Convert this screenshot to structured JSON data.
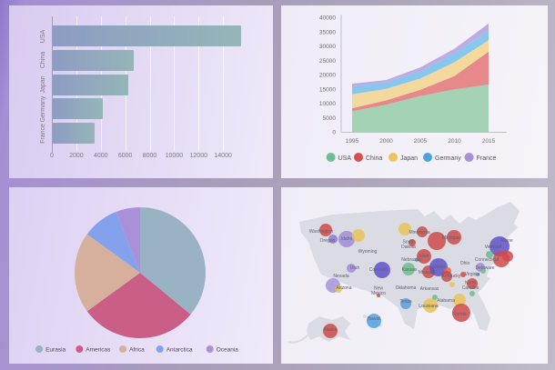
{
  "panels": {
    "top_left": "horizontal-bar-chart",
    "top_right": "stacked-area-chart",
    "bottom_left": "pie-chart",
    "bottom_right": "us-bubble-map"
  },
  "chart_data": [
    {
      "type": "bar",
      "orientation": "horizontal",
      "title": "",
      "categories": [
        "USA",
        "China",
        "Japan",
        "Germany",
        "France"
      ],
      "values": [
        15400,
        6600,
        6200,
        4100,
        3400
      ],
      "xticks": [
        0,
        2000,
        4000,
        6000,
        8000,
        10000,
        12000,
        14000
      ],
      "xlim": [
        0,
        16000
      ],
      "grid": true,
      "bar_gradient": [
        "#8d9cc3",
        "#95b6b8"
      ],
      "axis_text_color": "#7d7888"
    },
    {
      "type": "area",
      "stacked": true,
      "x": [
        1995,
        2000,
        2005,
        2010,
        2015
      ],
      "yticks": [
        0,
        5000,
        10000,
        15000,
        20000,
        25000,
        30000,
        35000,
        40000
      ],
      "ylim": [
        0,
        40000
      ],
      "grid": false,
      "legend_position": "bottom",
      "axis_text_color": "#6f6b78",
      "legend_text_color": "#55525e",
      "series": [
        {
          "name": "USA",
          "fill": "#9ccfae",
          "dot": "#6fbe93",
          "values": [
            7200,
            9500,
            12500,
            14800,
            16500
          ]
        },
        {
          "name": "China",
          "fill": "#e58081",
          "dot": "#d94f4f",
          "values": [
            1000,
            1500,
            2200,
            4700,
            11500
          ]
        },
        {
          "name": "Japan",
          "fill": "#f3d795",
          "dot": "#ecc35c",
          "values": [
            4900,
            4000,
            3900,
            4800,
            4000
          ]
        },
        {
          "name": "Germany",
          "fill": "#7fc3ec",
          "dot": "#4da3dd",
          "values": [
            2700,
            2300,
            2500,
            3200,
            3300
          ]
        },
        {
          "name": "France",
          "fill": "#b9a6de",
          "dot": "#a98fd6",
          "values": [
            1000,
            800,
            1400,
            1500,
            2500
          ]
        }
      ]
    },
    {
      "type": "pie",
      "labels": [
        "Eurasia",
        "Americas",
        "Africa",
        "Antarctica",
        "Oceania"
      ],
      "values": [
        36,
        29,
        20,
        9,
        6
      ],
      "unit": "percent-of-circle",
      "colors": [
        "#99b3c5",
        "#cb5e86",
        "#d7af9d",
        "#84a1ed",
        "#aa90d9"
      ],
      "legend_position": "bottom",
      "legend_text_color": "#4a4a55"
    },
    {
      "type": "scatter",
      "subtype": "us-bubble-map",
      "map_fill": "#dbdbe3",
      "label_color": "#60606c",
      "points": [
        {
          "state": "Washington",
          "label": "Washington",
          "lx": 44,
          "ly": 50,
          "bx": 49,
          "by": 47,
          "r": 7,
          "color": "#cf4a4a"
        },
        {
          "state": "Oregon",
          "label": "Oregon",
          "lx": 51,
          "ly": 60,
          "bx": 57,
          "by": 57,
          "r": 5,
          "color": "#8a7ad0"
        },
        {
          "state": "Idaho",
          "label": "Idaho",
          "lx": 72,
          "ly": 58,
          "bx": 72,
          "by": 57,
          "r": 9,
          "color": "#a08dd6"
        },
        {
          "state": "Montana",
          "label": "",
          "bx": 85,
          "by": 53,
          "r": 7,
          "color": "#e9c258"
        },
        {
          "state": "Wyoming",
          "label": "Wyoming",
          "lx": 95,
          "ly": 72,
          "r": 0
        },
        {
          "state": "Utah",
          "label": "Utah",
          "lx": 81,
          "ly": 90,
          "bx": 77,
          "by": 89,
          "r": 5,
          "color": "#a08dd6"
        },
        {
          "state": "Colorado",
          "label": "Colorado",
          "lx": 107,
          "ly": 92,
          "bx": 111,
          "by": 91,
          "r": 9,
          "color": "#5f51cb"
        },
        {
          "state": "Nevada",
          "label": "Nevada",
          "lx": 66,
          "ly": 99,
          "bx": 57,
          "by": 108,
          "r": 8,
          "color": "#a694d8"
        },
        {
          "state": "Arizona",
          "label": "Arizona",
          "lx": 69,
          "ly": 112,
          "bx": 63,
          "by": 112,
          "r": 4,
          "color": "#e9c258"
        },
        {
          "state": "New Mexico",
          "label": "New\nMexico",
          "lx": 107,
          "ly": 115,
          "bx": 107,
          "by": 119,
          "r": 2,
          "color": "#cf4a4a"
        },
        {
          "state": "North Dakota",
          "label": "",
          "bx": 136,
          "by": 46,
          "r": 7,
          "color": "#e9c258"
        },
        {
          "state": "Minnesota",
          "label": "Minnesota",
          "lx": 152,
          "ly": 51,
          "bx": 155,
          "by": 49,
          "r": 6,
          "color": "#cf4a4a"
        },
        {
          "state": "Wisconsin",
          "label": "",
          "bx": 171,
          "by": 59,
          "r": 10,
          "color": "#cf4a4a"
        },
        {
          "state": "Michigan",
          "label": "Michigan",
          "lx": 187,
          "ly": 57,
          "bx": 190,
          "by": 55,
          "r": 8,
          "color": "#cf4a4a"
        },
        {
          "state": "South Dakota",
          "label": "South\nDakota",
          "lx": 140,
          "ly": 64,
          "bx": 144,
          "by": 61,
          "r": 4,
          "color": "#cf4a4a"
        },
        {
          "state": "Nebraska",
          "label": "Nebraska",
          "lx": 143,
          "ly": 81,
          "bx": 149,
          "by": 80,
          "r": 2,
          "color": "#55a0e0"
        },
        {
          "state": "Iowa",
          "label": "Iowa",
          "lx": 157,
          "ly": 77,
          "bx": 157,
          "by": 76,
          "r": 8,
          "color": "#cf4a4a"
        },
        {
          "state": "Kansas",
          "label": "Kansas",
          "lx": 141,
          "ly": 92,
          "bx": 140,
          "by": 90,
          "r": 7,
          "color": "#6fbd8d"
        },
        {
          "state": "Missouri",
          "label": "Missouri",
          "lx": 160,
          "ly": 95,
          "bx": 162,
          "by": 93,
          "r": 7,
          "color": "#cf4a4a"
        },
        {
          "state": "Illinois",
          "label": "Illinois",
          "lx": 174,
          "ly": 89,
          "bx": 173,
          "by": 88,
          "r": 10,
          "color": "#5f51cb"
        },
        {
          "state": "Indiana",
          "label": "",
          "bx": 183,
          "by": 92,
          "r": 4,
          "color": "#e0684a"
        },
        {
          "state": "Ohio",
          "label": "Ohio",
          "lx": 202,
          "ly": 85,
          "r": 0
        },
        {
          "state": "Kentucky",
          "label": "Kentucky",
          "lx": 187,
          "ly": 99,
          "bx": 182,
          "by": 98,
          "r": 6,
          "color": "#cf4a4a"
        },
        {
          "state": "West Virginia",
          "label": "",
          "bx": 200,
          "by": 96,
          "r": 3,
          "color": "#cf4a4a"
        },
        {
          "state": "Virginia",
          "label": "Virginia",
          "lx": 210,
          "ly": 97,
          "bx": 216,
          "by": 96,
          "r": 2,
          "color": "#55a0e0"
        },
        {
          "state": "Tennessee",
          "label": "",
          "bx": 188,
          "by": 107,
          "r": 3,
          "color": "#e9c258"
        },
        {
          "state": "North Carolina",
          "label": "North\nCarolina",
          "lx": 208,
          "ly": 109,
          "bx": 210,
          "by": 106,
          "r": 6,
          "color": "#cf4a4a"
        },
        {
          "state": "South Carolina",
          "label": "",
          "bx": 210,
          "by": 117,
          "r": 3,
          "color": "#6fbd8d"
        },
        {
          "state": "Oklahoma",
          "label": "Oklahoma",
          "lx": 137,
          "ly": 112,
          "r": 0
        },
        {
          "state": "Arkansas",
          "label": "Arkansas",
          "lx": 163,
          "ly": 113,
          "r": 0
        },
        {
          "state": "Texas",
          "label": "Texas",
          "lx": 137,
          "ly": 127,
          "bx": 137,
          "by": 128,
          "r": 6,
          "color": "#55a0e0"
        },
        {
          "state": "Louisiana",
          "label": "Louisiana",
          "lx": 162,
          "ly": 132,
          "bx": 164,
          "by": 130,
          "r": 8,
          "color": "#e9c258"
        },
        {
          "state": "Mississippi",
          "label": "",
          "bx": 169,
          "by": 121,
          "r": 3,
          "color": "#6fbd8d"
        },
        {
          "state": "Alabama",
          "label": "Alabama",
          "lx": 181,
          "ly": 126,
          "r": 0
        },
        {
          "state": "Georgia",
          "label": "",
          "bx": 196,
          "by": 124,
          "r": 7,
          "color": "#e9c258"
        },
        {
          "state": "Florida",
          "label": "Florida",
          "lx": 196,
          "ly": 141,
          "bx": 198,
          "by": 138,
          "r": 10,
          "color": "#cf4a4a"
        },
        {
          "state": "Hawaii",
          "label": "Hawaii",
          "lx": 102,
          "ly": 146,
          "bx": 102,
          "by": 147,
          "r": 8,
          "color": "#55a0e0"
        },
        {
          "state": "Alaska",
          "label": "Alaska",
          "lx": 54,
          "ly": 158,
          "bx": 54,
          "by": 158,
          "r": 8,
          "color": "#cf4a4a"
        },
        {
          "state": "Maine",
          "label": "Maine",
          "lx": 248,
          "ly": 60,
          "r": 0
        },
        {
          "state": "Vermont",
          "label": "Vermont",
          "lx": 233,
          "ly": 67,
          "bx": 240,
          "by": 65,
          "r": 11,
          "color": "#5f51cb"
        },
        {
          "state": "New York",
          "label": "",
          "bx": 229,
          "by": 74,
          "r": 4,
          "color": "#6fbd8d"
        },
        {
          "state": "Massachusetts",
          "label": "",
          "bx": 249,
          "by": 76,
          "r": 6,
          "color": "#cf4a4a"
        },
        {
          "state": "Connecticut",
          "label": "Connecticut",
          "lx": 226,
          "ly": 81,
          "bx": 242,
          "by": 79,
          "r": 9,
          "color": "#cf4a4a"
        },
        {
          "state": "Delaware",
          "label": "Delaware",
          "lx": 224,
          "ly": 90,
          "bx": 219,
          "by": 88,
          "r": 5,
          "color": "#9d8bd4"
        },
        {
          "state": "New Jersey",
          "label": "",
          "bx": 222,
          "by": 92,
          "r": 3,
          "color": "#6fbd8d"
        }
      ]
    }
  ]
}
